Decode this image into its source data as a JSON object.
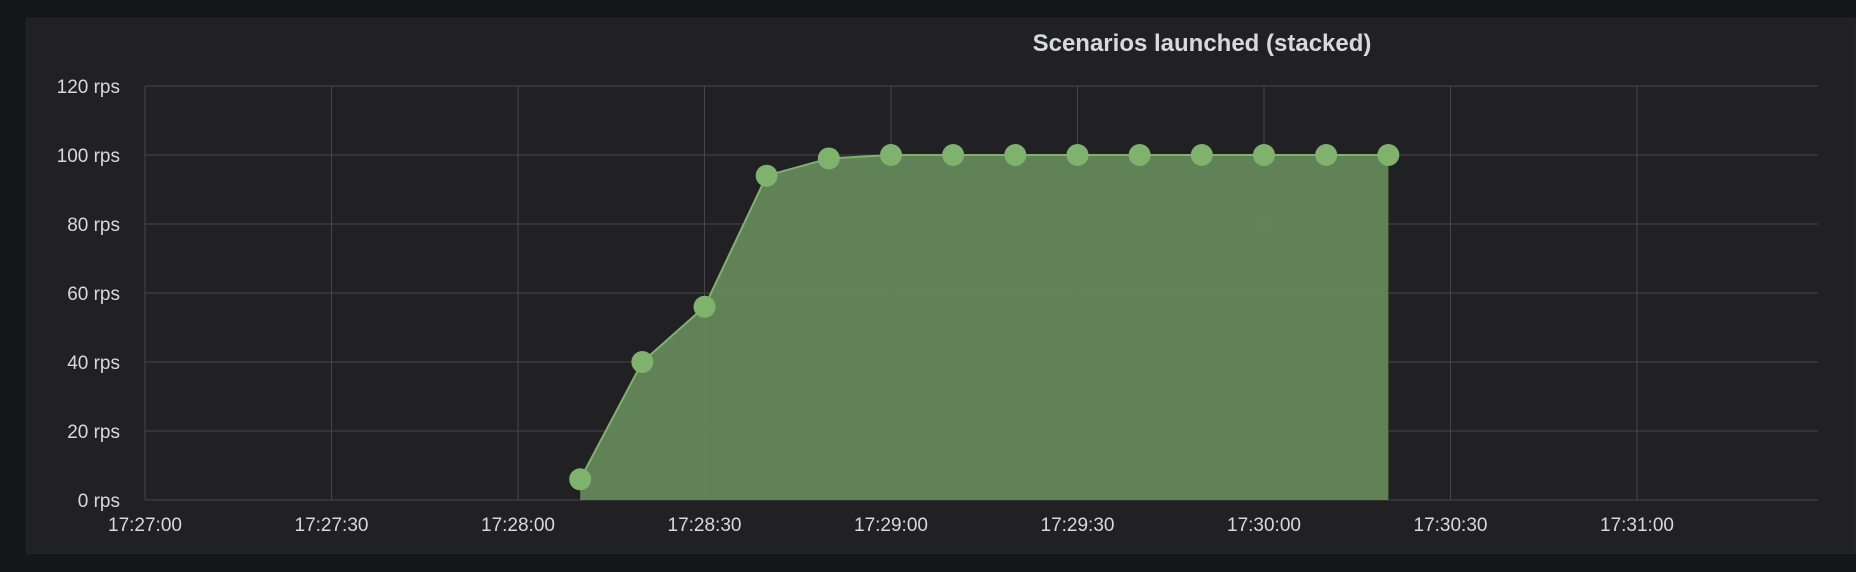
{
  "panel": {
    "title": "Scenarios launched (stacked)"
  },
  "colors": {
    "background": "#161719",
    "panel": "#212124",
    "grid": "#464649",
    "series_line": "#7eb26d",
    "series_fill": "#64885a",
    "text": "#d8d9da"
  },
  "chart_data": {
    "type": "area",
    "title": "Scenarios launched (stacked)",
    "stacked": true,
    "x_tick_labels": [
      "17:27:00",
      "17:27:30",
      "17:28:00",
      "17:28:30",
      "17:29:00",
      "17:29:30",
      "17:30:00",
      "17:30:30",
      "17:31:00"
    ],
    "y_tick_labels": [
      "0 rps",
      "20 rps",
      "40 rps",
      "60 rps",
      "80 rps",
      "100 rps",
      "120 rps"
    ],
    "x_range": [
      "17:27:00",
      "17:31:30"
    ],
    "ylim": [
      0,
      120
    ],
    "y_unit": "rps",
    "grid": true,
    "series": [
      {
        "x": [
          "17:28:10",
          "17:28:20",
          "17:28:30",
          "17:28:40",
          "17:28:50",
          "17:29:00",
          "17:29:10",
          "17:29:20",
          "17:29:30",
          "17:29:40",
          "17:29:50",
          "17:30:00",
          "17:30:10",
          "17:30:20"
        ],
        "values": [
          6,
          40,
          56,
          94,
          99,
          100,
          100,
          100,
          100,
          100,
          100,
          100,
          100,
          100
        ]
      }
    ]
  }
}
